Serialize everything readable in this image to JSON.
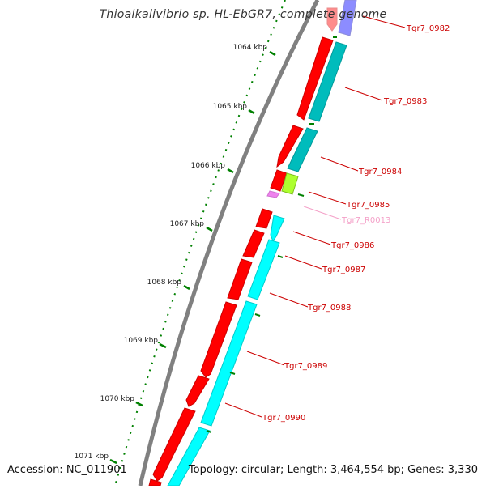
{
  "title": "Thioalkalivibrio sp. HL-EbGR7, complete genome",
  "footer": {
    "accession": "Accession: NC_011901",
    "summary": "Topology: circular; Length: 3,464,554 bp; Genes: 3,330"
  },
  "colors": {
    "backbone": "#808080",
    "cds_strand_plus": "#ff0000",
    "cds_strand_minus_a": "#00bcbc",
    "cds_strand_minus_b": "#00ffff",
    "selected_feature": "#0000ff",
    "rrna_trna": "#adff2f",
    "ncrna": "#ee82ee",
    "tick": "#008000",
    "label_red": "#cc0000",
    "label_pink": "#f4a0c8"
  },
  "ticks": [
    {
      "label": "1064 kbp"
    },
    {
      "label": "1065 kbp"
    },
    {
      "label": "1066 kbp"
    },
    {
      "label": "1067 kbp"
    },
    {
      "label": "1068 kbp"
    },
    {
      "label": "1069 kbp"
    },
    {
      "label": "1070 kbp"
    },
    {
      "label": "1071 kbp"
    }
  ],
  "feature_labels": [
    {
      "text": "Tgr7_0982",
      "color": "#cc0000"
    },
    {
      "text": "Tgr7_0983",
      "color": "#cc0000"
    },
    {
      "text": "Tgr7_0984",
      "color": "#cc0000"
    },
    {
      "text": "Tgr7_0985",
      "color": "#cc0000"
    },
    {
      "text": "Tgr7_R0013",
      "color": "#f4a0c8"
    },
    {
      "text": "Tgr7_0986",
      "color": "#cc0000"
    },
    {
      "text": "Tgr7_0987",
      "color": "#cc0000"
    },
    {
      "text": "Tgr7_0988",
      "color": "#cc0000"
    },
    {
      "text": "Tgr7_0989",
      "color": "#cc0000"
    },
    {
      "text": "Tgr7_0990",
      "color": "#cc0000"
    }
  ]
}
